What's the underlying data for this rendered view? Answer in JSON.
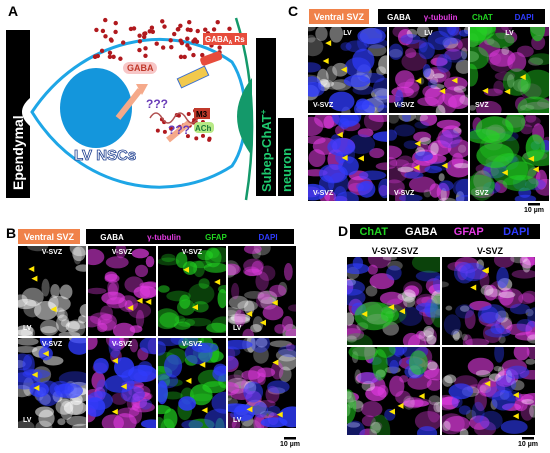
{
  "panel_a": {
    "label": "A",
    "ependymal": "Ependymal",
    "nucleus": "LV NSCs",
    "gaba": "GABA",
    "unknown": [
      "???",
      "???"
    ],
    "receptor": "GABA",
    "receptor_sub": "A",
    "receptor_suffix": " Rs",
    "m3": "M3",
    "ach": "ACh",
    "neuron": "Subep-ChAT",
    "neuron_sup": "+",
    "neuron_line2": "neuron"
  },
  "panel_b": {
    "label": "B",
    "region": "Ventral SVZ",
    "channels": [
      {
        "name": "GABA",
        "color": "#ffffff"
      },
      {
        "name": "γ-tubulin",
        "color": "#e23be2"
      },
      {
        "name": "GFAP",
        "color": "#22d422"
      },
      {
        "name": "DAPI",
        "color": "#2f3cff"
      }
    ],
    "tiles": [
      {
        "top": "V-SVZ",
        "bottom": "LV"
      },
      {
        "top": "V-SVZ"
      },
      {
        "top": "V-SVZ"
      },
      {
        "bottom": "LV"
      },
      {
        "top": "V-SVZ",
        "bottom": "LV"
      },
      {
        "top": "V-SVZ"
      },
      {
        "top": "V-SVZ"
      },
      {
        "bottom": "LV"
      }
    ],
    "scale": "10 µm"
  },
  "panel_c": {
    "label": "C",
    "region": "Ventral SVZ",
    "channels": [
      {
        "name": "GABA",
        "color": "#ffffff"
      },
      {
        "name": "γ-tubulin",
        "color": "#e23be2"
      },
      {
        "name": "ChAT",
        "color": "#22d422"
      },
      {
        "name": "DAPI",
        "color": "#2f3cff"
      }
    ],
    "tiles": [
      {
        "top": "LV",
        "bottom": "V-SVZ"
      },
      {
        "top": "LV",
        "bottom": "V-SVZ"
      },
      {
        "top": "LV",
        "bottom": "SVZ"
      },
      {
        "bottom": "V-SVZ"
      },
      {
        "bottom": "V-SVZ"
      },
      {
        "bottom": "SVZ"
      }
    ],
    "scale": "10 µm"
  },
  "panel_d": {
    "label": "D",
    "channels": [
      {
        "name": "ChAT",
        "color": "#22d422"
      },
      {
        "name": "GABA",
        "color": "#ffffff"
      },
      {
        "name": "GFAP",
        "color": "#e23be2"
      },
      {
        "name": "DAPI",
        "color": "#2f3cff"
      }
    ],
    "columns": [
      "V-SVZ-SVZ",
      "V-SVZ"
    ],
    "scale": "10 µm"
  }
}
